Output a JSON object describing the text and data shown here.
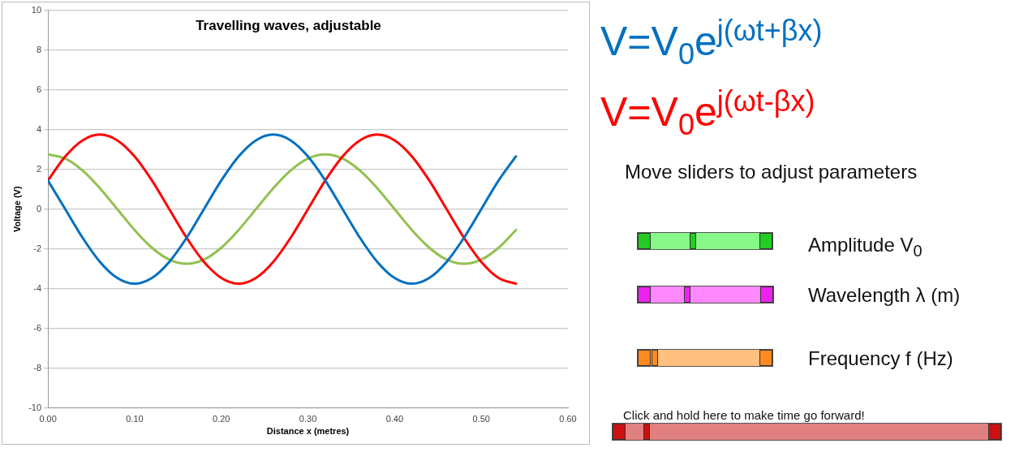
{
  "chart_data": {
    "type": "line",
    "title": "Travelling waves, adjustable",
    "xlabel": "Distance x (metres)",
    "ylabel": "Voltage (V)",
    "x": [
      0,
      0.02,
      0.04,
      0.06,
      0.08,
      0.1,
      0.12,
      0.14,
      0.16,
      0.18,
      0.2,
      0.22,
      0.24,
      0.26,
      0.28,
      0.3,
      0.32,
      0.34,
      0.36,
      0.38,
      0.4,
      0.42,
      0.44,
      0.46,
      0.48,
      0.5,
      0.52,
      0.54
    ],
    "series": [
      {
        "name": "V=V$_{0}$e$^{j(ωt+βx)}$",
        "color": "#0070c0",
        "values": [
          1.44,
          0,
          -1.44,
          -2.65,
          -3.46,
          -3.75,
          -3.46,
          -2.65,
          -1.44,
          0,
          1.44,
          2.65,
          3.46,
          3.75,
          3.46,
          2.65,
          1.44,
          0,
          -1.44,
          -2.65,
          -3.46,
          -3.75,
          -3.46,
          -2.65,
          -1.44,
          0,
          1.44,
          2.65
        ]
      },
      {
        "name": "V=V$_{0}$e$^{j(ωt-βx)}$",
        "color": "#ff0000",
        "values": [
          1.44,
          2.65,
          3.46,
          3.75,
          3.46,
          2.65,
          1.44,
          0,
          -1.44,
          -2.65,
          -3.46,
          -3.75,
          -3.46,
          -2.65,
          -1.44,
          0,
          1.44,
          2.65,
          3.46,
          3.75,
          3.46,
          2.65,
          1.44,
          0,
          -1.44,
          -2.65,
          -3.46,
          -3.75
        ]
      },
      {
        "color": "#92c050",
        "values": [
          2.75,
          2.54,
          1.94,
          1.05,
          0,
          -1.05,
          -1.94,
          -2.54,
          -2.75,
          -2.54,
          -1.94,
          -1.05,
          0,
          1.05,
          1.94,
          2.54,
          2.75,
          2.54,
          1.94,
          1.05,
          0,
          -1.05,
          -1.94,
          -2.54,
          -2.75,
          -2.54,
          -1.94,
          -1.05
        ]
      }
    ],
    "xlim": [
      0,
      0.6
    ],
    "xticks": [
      {
        "value": 0,
        "label": "0.00"
      },
      {
        "value": 0.1,
        "label": "0.10"
      },
      {
        "value": 0.2,
        "label": "0.20"
      },
      {
        "value": 0.3,
        "label": "0.30"
      },
      {
        "value": 0.4,
        "label": "0.40"
      },
      {
        "value": 0.5,
        "label": "0.50"
      },
      {
        "value": 0.6,
        "label": "0.60"
      }
    ],
    "ylim": [
      -10,
      10
    ],
    "yticks": [
      -10,
      -8,
      -6,
      -4,
      -2,
      0,
      2,
      4,
      6,
      8,
      10
    ],
    "grid": "y",
    "legend": "right",
    "marker": "none",
    "line_style": "solid",
    "annotations": [
      "Move sliders to adjust parameters",
      "Amplitude V$_{0}$",
      "Wavelength λ (m)",
      "Frequency f (Hz)",
      "Click and hold here to make time go forward!"
    ]
  }
}
